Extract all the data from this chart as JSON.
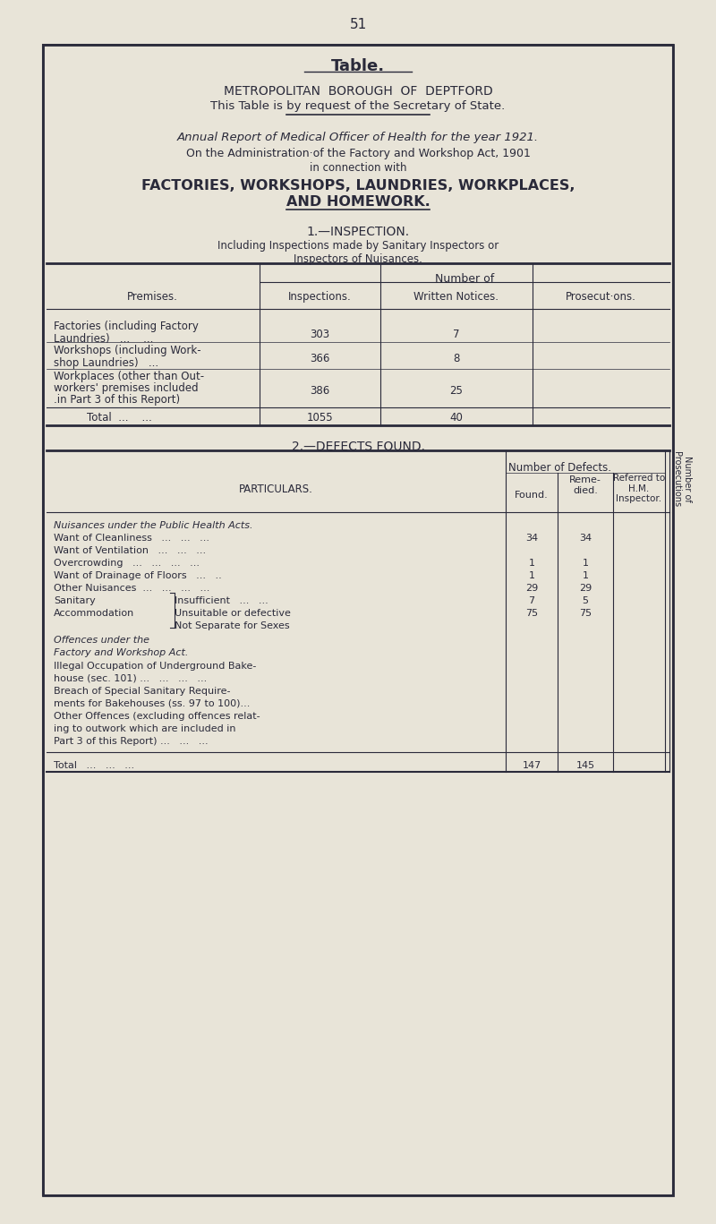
{
  "page_number": "51",
  "bg_color": "#e8e4d8",
  "text_color": "#2a2a3a",
  "border_color": "#2a2a3a",
  "title_bold": "Table.",
  "title_line1": "METROPOLITAN  BOROUGH  OF  DEPTFORD",
  "title_line2": "This Table is by request of the Secretary of State.",
  "italic_line": "Annual Report of Medical Officer of Health for the year 1921.",
  "admin_line1": "On the Administration·of the Factory and Workshop Act, 1901",
  "admin_line2": "in connection with",
  "big_title1": "FACTORIES, WORKSHOPS, LAUNDRIES, WORKPLACES,",
  "big_title2": "AND HOMEWORK.",
  "section1_title": "1.—INSPECTION.",
  "section1_sub1": "Including Inspections made by Sanitary Inspectors or",
  "section1_sub2": "Inspectors of Nuisances.",
  "table1_header_main": "Number of",
  "table1_col_headers": [
    "Inspections.",
    "Written Notices.",
    "Prosecut·ons."
  ],
  "table1_row_label": "Premises.",
  "section2_title": "2.—DEFECTS FOUND.",
  "table2_header1": "Number of Defects.",
  "table2_side_header": "Number of\nProsecutions",
  "table2_particulars_label": "PARTICULARS."
}
